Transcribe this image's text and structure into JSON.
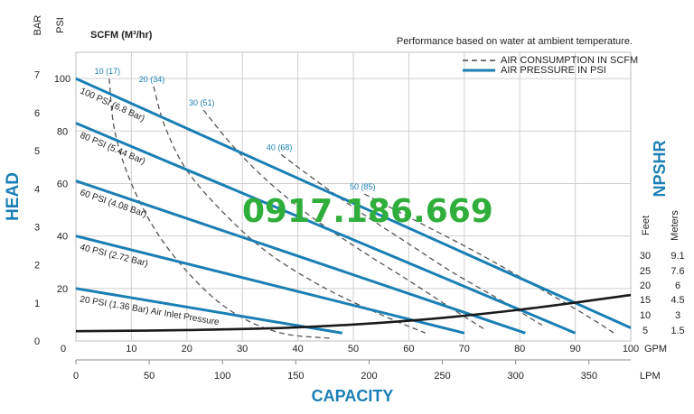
{
  "chart_data": {
    "type": "line",
    "title": "Performance based on water at ambient temperature.",
    "y_axis": {
      "label": "HEAD",
      "bar_label": "BAR",
      "psi_label": "PSI",
      "bar_ticks": [
        "0",
        "1",
        "2",
        "3",
        "4",
        "5",
        "6",
        "7"
      ],
      "psi_ticks": [
        "20",
        "40",
        "60",
        "80",
        "100"
      ],
      "psi_range": [
        0,
        110
      ]
    },
    "x_axis": {
      "label": "CAPACITY",
      "gpm_unit": "GPM",
      "lpm_unit": "LPM",
      "gpm_ticks": [
        "0",
        "10",
        "20",
        "30",
        "40",
        "50",
        "60",
        "70",
        "80",
        "90",
        "100"
      ],
      "lpm_ticks": [
        "0",
        "50",
        "100",
        "150",
        "200",
        "250",
        "300",
        "350"
      ],
      "gpm_range": [
        0,
        100
      ]
    },
    "right_axis": {
      "label": "NPSHR",
      "feet_label": "Feet",
      "meters_label": "Meters",
      "feet_ticks": [
        "30",
        "25",
        "20",
        "15",
        "10",
        "5"
      ],
      "meter_ticks": [
        "9.1",
        "7.6",
        "6",
        "4.5",
        "3",
        "1.5"
      ]
    },
    "scfm_header": "SCFM (M³/hr)",
    "legend": [
      {
        "label": "AIR CONSUMPTION IN SCFM",
        "style": "dashed",
        "color": "#444444"
      },
      {
        "label": "AIR PRESSURE IN PSI",
        "style": "solid",
        "color": "#1a7fb4"
      }
    ],
    "watermark": "0917.186.669",
    "pressure_series": [
      {
        "label": "100 PSI (6.8 Bar)",
        "points": [
          [
            0,
            100
          ],
          [
            100,
            5
          ]
        ]
      },
      {
        "label": "80 PSI (5.44 Bar)",
        "points": [
          [
            0,
            83
          ],
          [
            90,
            3
          ]
        ]
      },
      {
        "label": "60 PSI (4.08 Bar)",
        "points": [
          [
            0,
            61
          ],
          [
            81,
            3
          ]
        ]
      },
      {
        "label": "40 PSI (2.72 Bar)",
        "points": [
          [
            0,
            40
          ],
          [
            70,
            3
          ]
        ]
      },
      {
        "label": "20 PSI (1.36 Bar) Air Inlet Pressure",
        "points": [
          [
            0,
            20
          ],
          [
            48,
            3
          ]
        ]
      }
    ],
    "air_consumption_series": [
      {
        "label": "10 (17)",
        "points": [
          [
            6,
            100
          ],
          [
            7,
            80
          ],
          [
            10,
            60
          ],
          [
            15,
            40
          ],
          [
            22,
            22
          ],
          [
            29,
            10
          ],
          [
            37,
            3
          ],
          [
            46,
            1
          ]
        ]
      },
      {
        "label": "20 (34)",
        "points": [
          [
            14,
            97
          ],
          [
            16,
            82
          ],
          [
            20,
            65
          ],
          [
            27,
            48
          ],
          [
            35,
            33
          ],
          [
            45,
            20
          ],
          [
            55,
            10
          ],
          [
            63,
            3
          ]
        ]
      },
      {
        "label": "30 (51)",
        "points": [
          [
            23,
            88
          ],
          [
            28,
            75
          ],
          [
            34,
            62
          ],
          [
            42,
            48
          ],
          [
            51,
            35
          ],
          [
            60,
            23
          ],
          [
            68,
            12
          ],
          [
            74,
            4
          ]
        ]
      },
      {
        "label": "40 (68)",
        "points": [
          [
            37,
            71
          ],
          [
            44,
            60
          ],
          [
            52,
            48
          ],
          [
            60,
            37
          ],
          [
            68,
            26
          ],
          [
            77,
            15
          ],
          [
            84,
            6
          ]
        ]
      },
      {
        "label": "50 (85)",
        "points": [
          [
            52,
            56
          ],
          [
            62,
            45
          ],
          [
            72,
            34
          ],
          [
            82,
            22
          ],
          [
            91,
            11
          ],
          [
            97,
            3
          ]
        ]
      }
    ],
    "npshr_series": {
      "label": "NPSHR",
      "unit": "Feet",
      "points": [
        [
          0,
          5.3
        ],
        [
          20,
          5.9
        ],
        [
          40,
          7.4
        ],
        [
          60,
          11
        ],
        [
          80,
          17
        ],
        [
          100,
          25
        ]
      ]
    }
  }
}
